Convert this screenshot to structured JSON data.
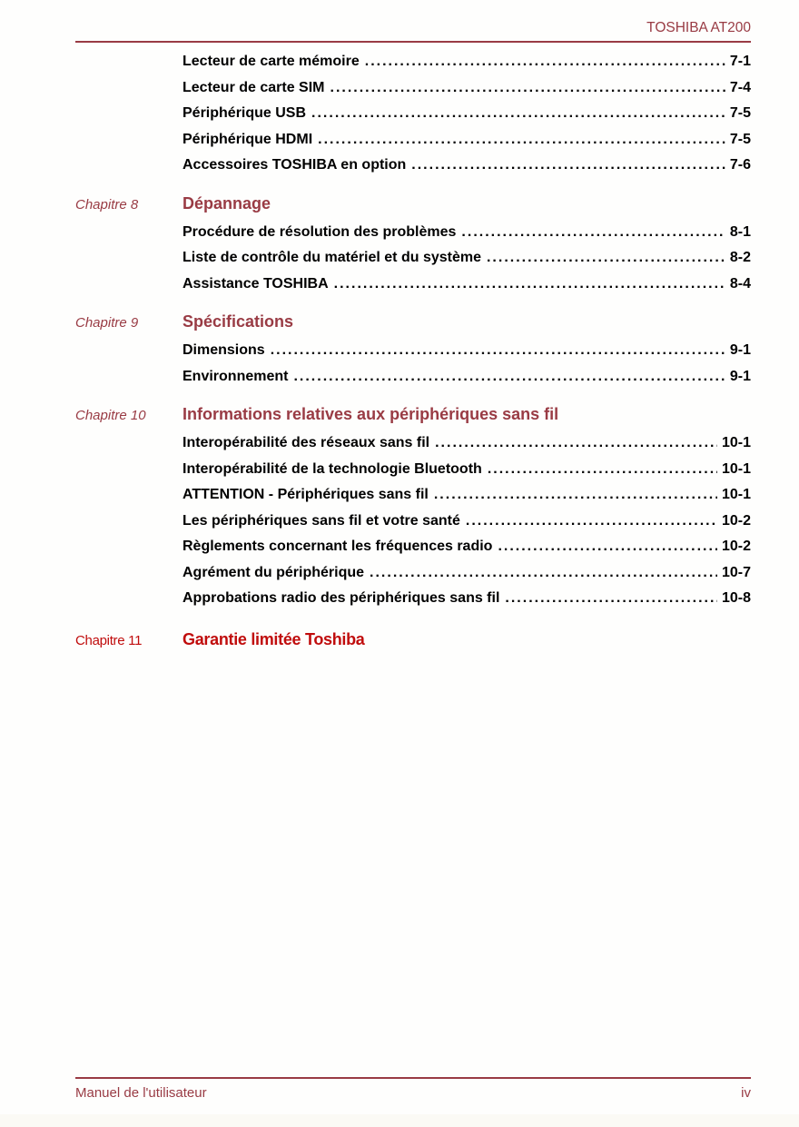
{
  "page": {
    "header": {
      "title": "TOSHIBA AT200"
    },
    "footer": {
      "left_text": "Manuel de l'utilisateur",
      "page_number": "iv"
    },
    "colors": {
      "accent": "#993b44",
      "accent_bright": "#c00c0c",
      "text": "#000000"
    }
  },
  "toc": {
    "continued_entries": [
      {
        "label": "Lecteur de carte mémoire",
        "page": "7-1"
      },
      {
        "label": "Lecteur de carte SIM",
        "page": "7-4"
      },
      {
        "label": "Périphérique USB",
        "page": "7-5"
      },
      {
        "label": "Périphérique HDMI",
        "page": "7-5"
      },
      {
        "label": "Accessoires TOSHIBA en option",
        "page": "7-6"
      }
    ],
    "chapters": [
      {
        "label": "Chapitre 8",
        "title": "Dépannage",
        "entries": [
          {
            "label": "Procédure de résolution des problèmes",
            "page": "8-1"
          },
          {
            "label": "Liste de contrôle du matériel et du système",
            "page": "8-2"
          },
          {
            "label": "Assistance TOSHIBA",
            "page": "8-4"
          }
        ]
      },
      {
        "label": "Chapitre 9",
        "title": "Spécifications",
        "entries": [
          {
            "label": "Dimensions",
            "page": "9-1"
          },
          {
            "label": "Environnement",
            "page": "9-1"
          }
        ]
      },
      {
        "label": "Chapitre 10",
        "title": "Informations relatives aux périphériques sans fil",
        "entries": [
          {
            "label": "Interopérabilité des réseaux sans fil",
            "page": "10-1"
          },
          {
            "label": "Interopérabilité de la technologie Bluetooth",
            "page": "10-1"
          },
          {
            "label": "ATTENTION - Périphériques sans fil",
            "page": "10-1"
          },
          {
            "label": "Les périphériques sans fil et votre santé",
            "page": "10-2"
          },
          {
            "label": "Règlements concernant les fréquences radio",
            "page": "10-2"
          },
          {
            "label": "Agrément du périphérique",
            "page": "10-7"
          },
          {
            "label": "Approbations radio des périphériques sans fil",
            "page": "10-8"
          }
        ]
      },
      {
        "label": "Chapitre 11",
        "title": "Garantie limitée Toshiba",
        "entries": []
      }
    ]
  }
}
